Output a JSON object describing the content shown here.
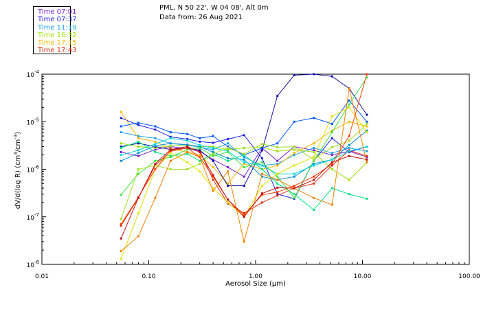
{
  "header": {
    "line1": "PML, N 50 22', W 04 08', Alt 0m",
    "line2": "Data from: 26 Aug 2021"
  },
  "chart_data": {
    "type": "line",
    "title": "PML, N 50 22', W 04 08', Alt 0m",
    "subtitle": "Data from: 26 Aug 2021",
    "xlabel": "Aerosol Size (μm)",
    "ylabel_parts": [
      "dV/d(log R) (cm",
      "3",
      "/cm",
      "-3",
      ")"
    ],
    "xscale": "log",
    "yscale": "log",
    "xlim": [
      0.01,
      100
    ],
    "ylim": [
      1e-08,
      0.0001
    ],
    "xticks": [
      {
        "v": 0.01,
        "label": "0.01"
      },
      {
        "v": 0.1,
        "label": "0.10"
      },
      {
        "v": 1,
        "label": "1.00"
      },
      {
        "v": 10,
        "label": "10.00"
      },
      {
        "v": 100,
        "label": "100.00"
      }
    ],
    "yticks": [
      {
        "v": 1e-08,
        "label": "10",
        "exp": "-8"
      },
      {
        "v": 1e-07,
        "label": "10",
        "exp": "-7"
      },
      {
        "v": 1e-06,
        "label": "10",
        "exp": "-6"
      },
      {
        "v": 1e-05,
        "label": "10",
        "exp": "-5"
      },
      {
        "v": 0.0001,
        "label": "10",
        "exp": "-4"
      }
    ],
    "x": [
      0.055,
      0.08,
      0.115,
      0.16,
      0.23,
      0.3,
      0.4,
      0.55,
      0.78,
      1.15,
      1.6,
      2.3,
      3.5,
      5.2,
      7.5,
      11.0
    ],
    "legend_placement": "top-left",
    "series": [
      {
        "name": "Time 07:01",
        "color": "#7a1fd0",
        "values": [
          2.3e-06,
          1.9e-06,
          2.6e-06,
          3e-06,
          2.7e-06,
          2.4e-06,
          1.6e-06,
          1.1e-06,
          7e-07,
          2.8e-06,
          1.5e-06,
          3e-06,
          2.5e-06,
          2e-06,
          2.4e-06,
          1.8e-06
        ]
      },
      {
        "name": "Time 07:37",
        "color": "#2020e0",
        "values": [
          1.2e-05,
          8.5e-06,
          6.8e-06,
          4.8e-06,
          4.3e-06,
          3.8e-06,
          3.6e-06,
          4.3e-06,
          5.2e-06,
          1.7e-06,
          3e-07,
          2.4e-07,
          1.5e-06,
          4.5e-06,
          2.3e-06,
          3e-06
        ]
      },
      {
        "name": "Time 11:19",
        "color": "#1aa0ee",
        "values": [
          6e-06,
          5e-06,
          4.5e-06,
          3.5e-06,
          3.2e-06,
          2.9e-06,
          2.6e-06,
          3.5e-06,
          1.8e-06,
          1.2e-06,
          1.3e-06,
          2e-06,
          2.8e-06,
          2.2e-06,
          2.8e-06,
          2.4e-06
        ]
      },
      {
        "name": "Time 16:32",
        "color": "#9be000",
        "values": [
          3.5e-06,
          3e-06,
          2.8e-06,
          3.1e-06,
          3.2e-06,
          3e-06,
          3e-06,
          2.6e-06,
          2.8e-06,
          2.9e-06,
          2.4e-06,
          2.6e-06,
          2.3e-06,
          1e-06,
          6e-07,
          1.4e-06
        ]
      },
      {
        "name": "Time 17:15",
        "color": "#f0b800",
        "values": [
          1.6e-05,
          4.5e-06,
          3.8e-06,
          2.7e-06,
          2.3e-06,
          2e-06,
          1.1e-06,
          5e-07,
          1.3e-06,
          1e-06,
          1.2e-06,
          2.2e-06,
          3.5e-06,
          6.5e-06,
          1e-05,
          8e-06
        ]
      },
      {
        "name": "Time 17:43",
        "color": "#e03010",
        "values": [
          6.5e-08,
          2.5e-07,
          1.2e-06,
          2.4e-06,
          2.8e-06,
          2.5e-06,
          6e-07,
          1.9e-07,
          1.2e-07,
          2e-07,
          2.8e-07,
          4e-07,
          5e-07,
          1.2e-06,
          2.5e-06,
          1.9e-06
        ]
      },
      {
        "name": "",
        "color": "#0058ff",
        "values": [
          8e-06,
          9.5e-06,
          8e-06,
          6e-06,
          5.5e-06,
          4.5e-06,
          5e-06,
          3e-06,
          2e-06,
          2.8e-06,
          3.5e-06,
          1e-05,
          1.2e-05,
          9e-06,
          2.8e-05,
          1e-05
        ]
      },
      {
        "name": "",
        "color": "#1010a0",
        "values": [
          3e-06,
          3.5e-06,
          3e-06,
          2.6e-06,
          2.8e-06,
          2.5e-06,
          1.5e-06,
          4.5e-07,
          4.5e-07,
          2.5e-06,
          3.5e-05,
          9.5e-05,
          0.0001,
          9e-05,
          5e-05,
          1.4e-05
        ]
      },
      {
        "name": "",
        "color": "#0090d0",
        "values": [
          1.5e-06,
          2.2e-06,
          3.1e-06,
          3.5e-06,
          3.3e-06,
          3e-06,
          2.3e-06,
          1.7e-06,
          1.6e-06,
          7e-07,
          6e-07,
          7e-07,
          1.3e-06,
          1.6e-06,
          3.2e-06,
          6.5e-06
        ]
      },
      {
        "name": "",
        "color": "#00d8d8",
        "values": [
          2e-06,
          2.5e-06,
          3.4e-06,
          4.5e-06,
          4e-06,
          3.2e-06,
          2.8e-06,
          2.4e-06,
          1.4e-06,
          1.2e-06,
          8e-07,
          8e-07,
          1.2e-06,
          1.6e-06,
          2.4e-06,
          3e-06
        ]
      },
      {
        "name": "",
        "color": "#00e080",
        "values": [
          2.8e-06,
          3.8e-06,
          2.3e-06,
          1.9e-06,
          2.1e-06,
          1.5e-06,
          2.1e-06,
          1.5e-06,
          2e-06,
          1e-06,
          5e-07,
          3e-07,
          1.4e-07,
          4e-07,
          3e-07,
          2.4e-07
        ]
      },
      {
        "name": "",
        "color": "#40e040",
        "values": [
          2.9e-07,
          8e-07,
          1.5e-06,
          1.8e-06,
          2.6e-06,
          2.8e-06,
          1.9e-06,
          2.3e-06,
          1.1e-06,
          1.4e-06,
          7e-07,
          2.5e-07,
          1.5e-06,
          6e-06,
          2.3e-05,
          8.5e-05
        ]
      },
      {
        "name": "",
        "color": "#a0e020",
        "values": [
          9e-08,
          1e-06,
          1.2e-06,
          1e-06,
          1e-06,
          1.3e-06,
          2.1e-06,
          2.8e-06,
          2.1e-06,
          3.4e-06,
          2.9e-06,
          3e-06,
          1.6e-06,
          2.9e-06,
          4e-06,
          9e-06
        ]
      },
      {
        "name": "",
        "color": "#e0e000",
        "values": [
          1.3e-08,
          1.2e-07,
          1e-06,
          2.2e-06,
          1.4e-06,
          9e-07,
          4e-07,
          2e-07,
          1e-07,
          4.5e-07,
          8e-07,
          1.2e-06,
          1.8e-06,
          1.3e-05,
          2e-05,
          6e-06
        ]
      },
      {
        "name": "",
        "color": "#f08000",
        "values": [
          1.9e-08,
          3.9e-08,
          2.5e-07,
          1.5e-06,
          2.3e-06,
          1.8e-06,
          3.5e-07,
          9e-07,
          3e-08,
          8e-07,
          6e-07,
          4e-07,
          2.5e-07,
          1.8e-07,
          5e-05,
          1.4e-06
        ]
      },
      {
        "name": "",
        "color": "#ff4000",
        "values": [
          7e-08,
          2.6e-07,
          1e-06,
          2.5e-06,
          2.8e-06,
          1.8e-06,
          7e-07,
          2.3e-07,
          1.1e-07,
          2.9e-07,
          3.3e-07,
          4.5e-07,
          7e-07,
          1.3e-06,
          5e-06,
          0.0001
        ]
      },
      {
        "name": "",
        "color": "#c01010",
        "values": [
          3.5e-08,
          2.5e-07,
          1.3e-06,
          2.6e-06,
          3e-06,
          2.3e-06,
          7.5e-07,
          2.3e-07,
          1e-07,
          3.1e-07,
          4.1e-07,
          4e-07,
          6e-07,
          1.4e-06,
          1.9e-06,
          1.6e-06
        ]
      }
    ]
  }
}
